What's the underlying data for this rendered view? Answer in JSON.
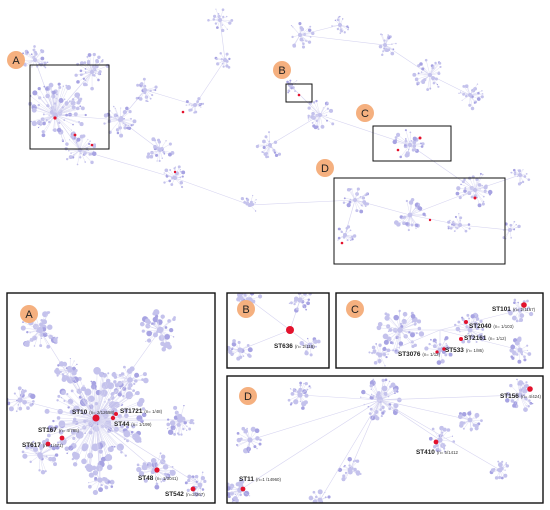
{
  "colors": {
    "node": "#c4c2ec",
    "node_dark": "#a7a3e2",
    "edge": "#d6d4f0",
    "highlight": "#e3122d",
    "badge": "#f5b07f",
    "frame": "#111111"
  },
  "overview": {
    "labels": [
      "A",
      "B",
      "C",
      "D"
    ]
  },
  "panels": [
    {
      "label": "A",
      "items": [
        {
          "st": "ST10",
          "n": "(n= 2/12658)"
        },
        {
          "st": "ST1721",
          "n": "(n= 1/48)"
        },
        {
          "st": "ST44",
          "n": "(n= 1/199)"
        },
        {
          "st": "ST167",
          "n": "(n= 4/785)"
        },
        {
          "st": "ST617",
          "n": "(n= 1/471)"
        },
        {
          "st": "ST48",
          "n": "(n= 1/3041)"
        },
        {
          "st": "ST542",
          "n": "(n=2/267)"
        }
      ]
    },
    {
      "label": "B",
      "items": [
        {
          "st": "ST636",
          "n": "(n= 2/118)"
        }
      ]
    },
    {
      "label": "C",
      "items": [
        {
          "st": "ST101",
          "n": "(n= 2/1167)"
        },
        {
          "st": "ST2040",
          "n": "(n= 1/103)"
        },
        {
          "st": "ST2161",
          "n": "(n= 1/12)"
        },
        {
          "st": "ST533",
          "n": "(n= 1/86)"
        },
        {
          "st": "ST3076",
          "n": "(n= 1/12)"
        }
      ]
    },
    {
      "label": "D",
      "items": [
        {
          "st": "ST156",
          "n": "(n= 4/424)"
        },
        {
          "st": "ST410",
          "n": "(n= 5/1412"
        },
        {
          "st": "ST11",
          "n": "(n=1 /14960)"
        }
      ]
    }
  ]
}
